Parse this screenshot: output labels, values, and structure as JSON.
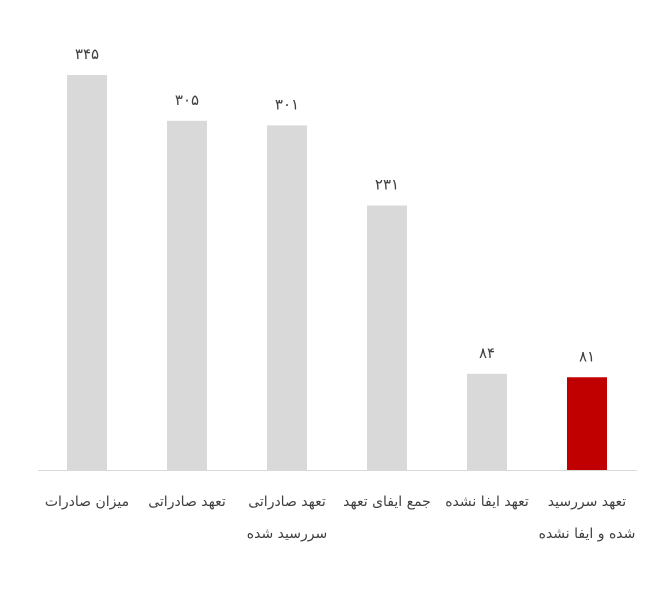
{
  "chart_data": {
    "type": "bar",
    "categories": [
      "میزان صادرات",
      "تعهد صادراتی",
      "تعهد صادراتی سررسید شده",
      "جمع ایفای تعهد",
      "تعهد ایفا نشده",
      "تعهد سررسید شده و ایفا نشده"
    ],
    "values": [
      345,
      305,
      301,
      231,
      84,
      81
    ],
    "value_labels": [
      "۳۴۵",
      "۳۰۵",
      "۳۰۱",
      "۲۳۱",
      "۸۴",
      "۸۱"
    ],
    "colors": [
      "#d9d9d9",
      "#d9d9d9",
      "#d9d9d9",
      "#d9d9d9",
      "#d9d9d9",
      "#c00000"
    ]
  }
}
